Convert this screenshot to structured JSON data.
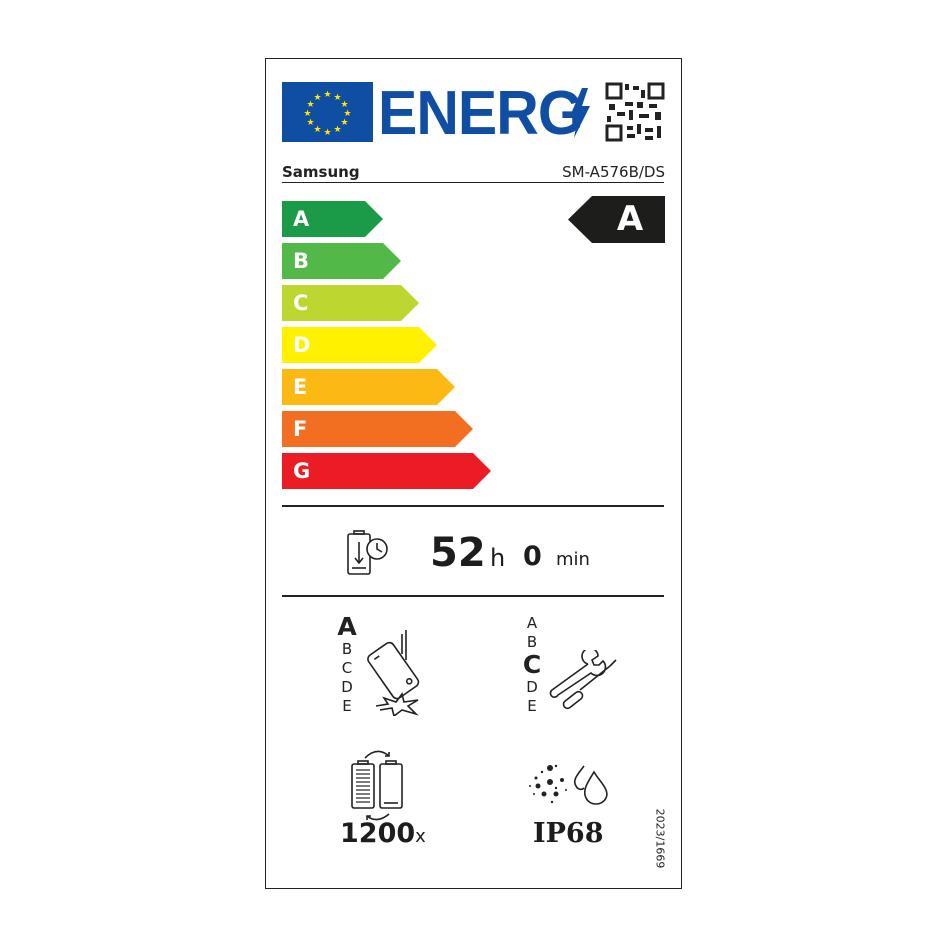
{
  "header": {
    "logo_text": "ENERG",
    "brand": "Samsung",
    "model": "SM-A576B/DS"
  },
  "scale": {
    "classes": [
      {
        "letter": "A",
        "color": "#1b9a47"
      },
      {
        "letter": "B",
        "color": "#52b847"
      },
      {
        "letter": "C",
        "color": "#bdd630"
      },
      {
        "letter": "D",
        "color": "#fff100"
      },
      {
        "letter": "E",
        "color": "#fcb813"
      },
      {
        "letter": "F",
        "color": "#f26f22"
      },
      {
        "letter": "G",
        "color": "#ec1c24"
      }
    ],
    "rating": "A"
  },
  "battery_endurance": {
    "hours": "52",
    "h_unit": "h",
    "minutes": "0",
    "min_unit": "min"
  },
  "drop_resistance": {
    "classes": [
      "A",
      "B",
      "C",
      "D",
      "E"
    ],
    "rating": "A"
  },
  "repairability": {
    "classes": [
      "A",
      "B",
      "C",
      "D",
      "E"
    ],
    "rating": "C"
  },
  "battery_cycles": {
    "value": "1200",
    "unit": "x"
  },
  "ingress": {
    "value": "IP68"
  },
  "regulation": "2023/1669"
}
